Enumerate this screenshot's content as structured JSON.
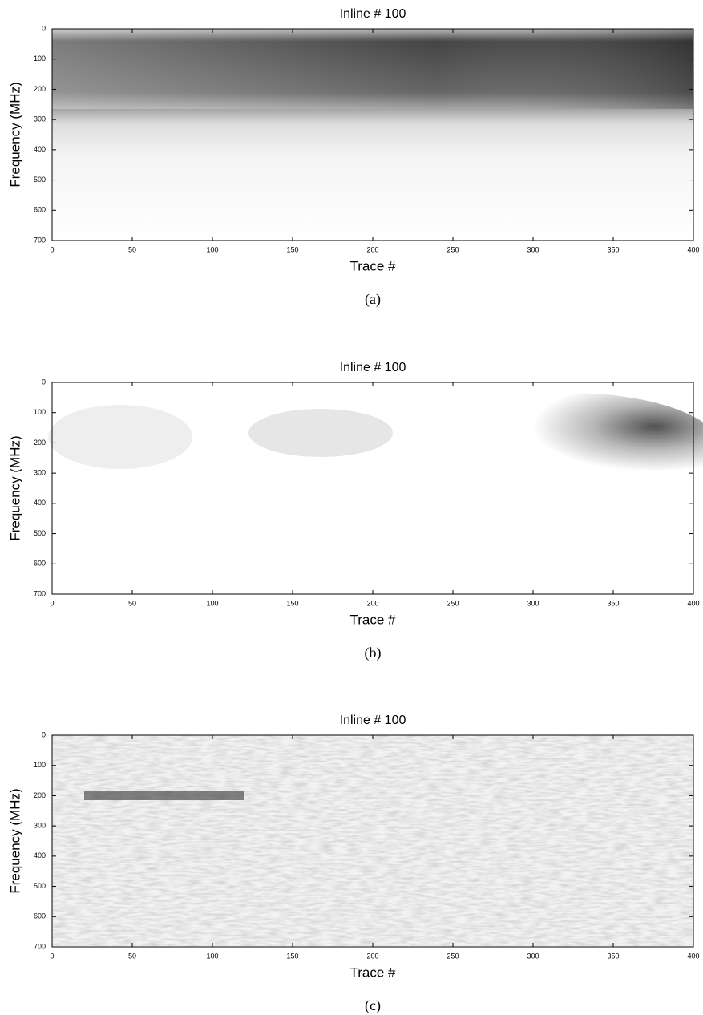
{
  "chart_data": [
    {
      "type": "heatmap",
      "title": "Inline # 100",
      "xlabel": "Trace #",
      "ylabel": "Frequency (MHz)",
      "caption": "(a)",
      "xlim": [
        0,
        400
      ],
      "ylim": [
        0,
        700
      ],
      "y_inverted": true,
      "xticks": [
        0,
        50,
        100,
        150,
        200,
        250,
        300,
        350,
        400
      ],
      "yticks": [
        0,
        100,
        200,
        300,
        400,
        500,
        600,
        700
      ],
      "colormap": "gray"
    },
    {
      "type": "heatmap",
      "title": "Inline # 100",
      "xlabel": "Trace #",
      "ylabel": "Frequency (MHz)",
      "caption": "(b)",
      "xlim": [
        0,
        400
      ],
      "ylim": [
        0,
        700
      ],
      "y_inverted": true,
      "xticks": [
        0,
        50,
        100,
        150,
        200,
        250,
        300,
        350,
        400
      ],
      "yticks": [
        0,
        100,
        200,
        300,
        400,
        500,
        600,
        700
      ],
      "colormap": "gray"
    },
    {
      "type": "heatmap",
      "title": "Inline # 100",
      "xlabel": "Trace #",
      "ylabel": "Frequency (MHz)",
      "caption": "(c)",
      "xlim": [
        0,
        400
      ],
      "ylim": [
        0,
        700
      ],
      "y_inverted": true,
      "xticks": [
        0,
        50,
        100,
        150,
        200,
        250,
        300,
        350,
        400
      ],
      "yticks": [
        0,
        100,
        200,
        300,
        400,
        500,
        600,
        700
      ],
      "colormap": "gray"
    }
  ]
}
